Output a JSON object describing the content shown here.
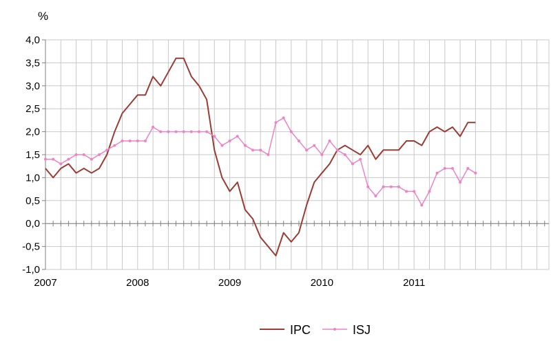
{
  "chart_data": {
    "type": "line",
    "unit_label": "%",
    "ylim": [
      -1.0,
      4.0
    ],
    "y_ticks": [
      "-1,0",
      "-0,5",
      "0,0",
      "0,5",
      "1,0",
      "1,5",
      "2,0",
      "2,5",
      "3,0",
      "3,5",
      "4,0"
    ],
    "x_labels": [
      "2007",
      "2008",
      "2009",
      "2010",
      "2011"
    ],
    "grid": true,
    "legend_position": "bottom",
    "series": [
      {
        "name": "IPC",
        "color": "#9b3b32",
        "markers": false,
        "values": [
          1.2,
          1.0,
          1.2,
          1.3,
          1.1,
          1.2,
          1.1,
          1.2,
          1.5,
          2.0,
          2.4,
          2.6,
          2.8,
          2.8,
          3.2,
          3.0,
          3.3,
          3.6,
          3.6,
          3.2,
          3.0,
          2.7,
          1.6,
          1.0,
          0.7,
          0.9,
          0.3,
          0.1,
          -0.3,
          -0.5,
          -0.7,
          -0.2,
          -0.4,
          -0.2,
          0.4,
          0.9,
          1.1,
          1.3,
          1.6,
          1.7,
          1.6,
          1.5,
          1.7,
          1.4,
          1.6,
          1.6,
          1.6,
          1.8,
          1.8,
          1.7,
          2.0,
          2.1,
          2.0,
          2.1,
          1.9,
          2.2,
          2.2
        ]
      },
      {
        "name": "ISJ",
        "color": "#ef82c6",
        "markers": true,
        "values": [
          1.4,
          1.4,
          1.3,
          1.4,
          1.5,
          1.5,
          1.4,
          1.5,
          1.6,
          1.7,
          1.8,
          1.8,
          1.8,
          1.8,
          2.1,
          2.0,
          2.0,
          2.0,
          2.0,
          2.0,
          2.0,
          2.0,
          1.9,
          1.7,
          1.8,
          1.9,
          1.7,
          1.6,
          1.6,
          1.5,
          2.2,
          2.3,
          2.0,
          1.8,
          1.6,
          1.7,
          1.5,
          1.8,
          1.6,
          1.5,
          1.3,
          1.4,
          0.8,
          0.6,
          0.8,
          0.8,
          0.8,
          0.7,
          0.7,
          0.4,
          0.7,
          1.1,
          1.2,
          1.2,
          0.9,
          1.2,
          1.1
        ]
      }
    ]
  },
  "colors": {
    "grid": "#c8c8c8",
    "axis": "#808080"
  }
}
